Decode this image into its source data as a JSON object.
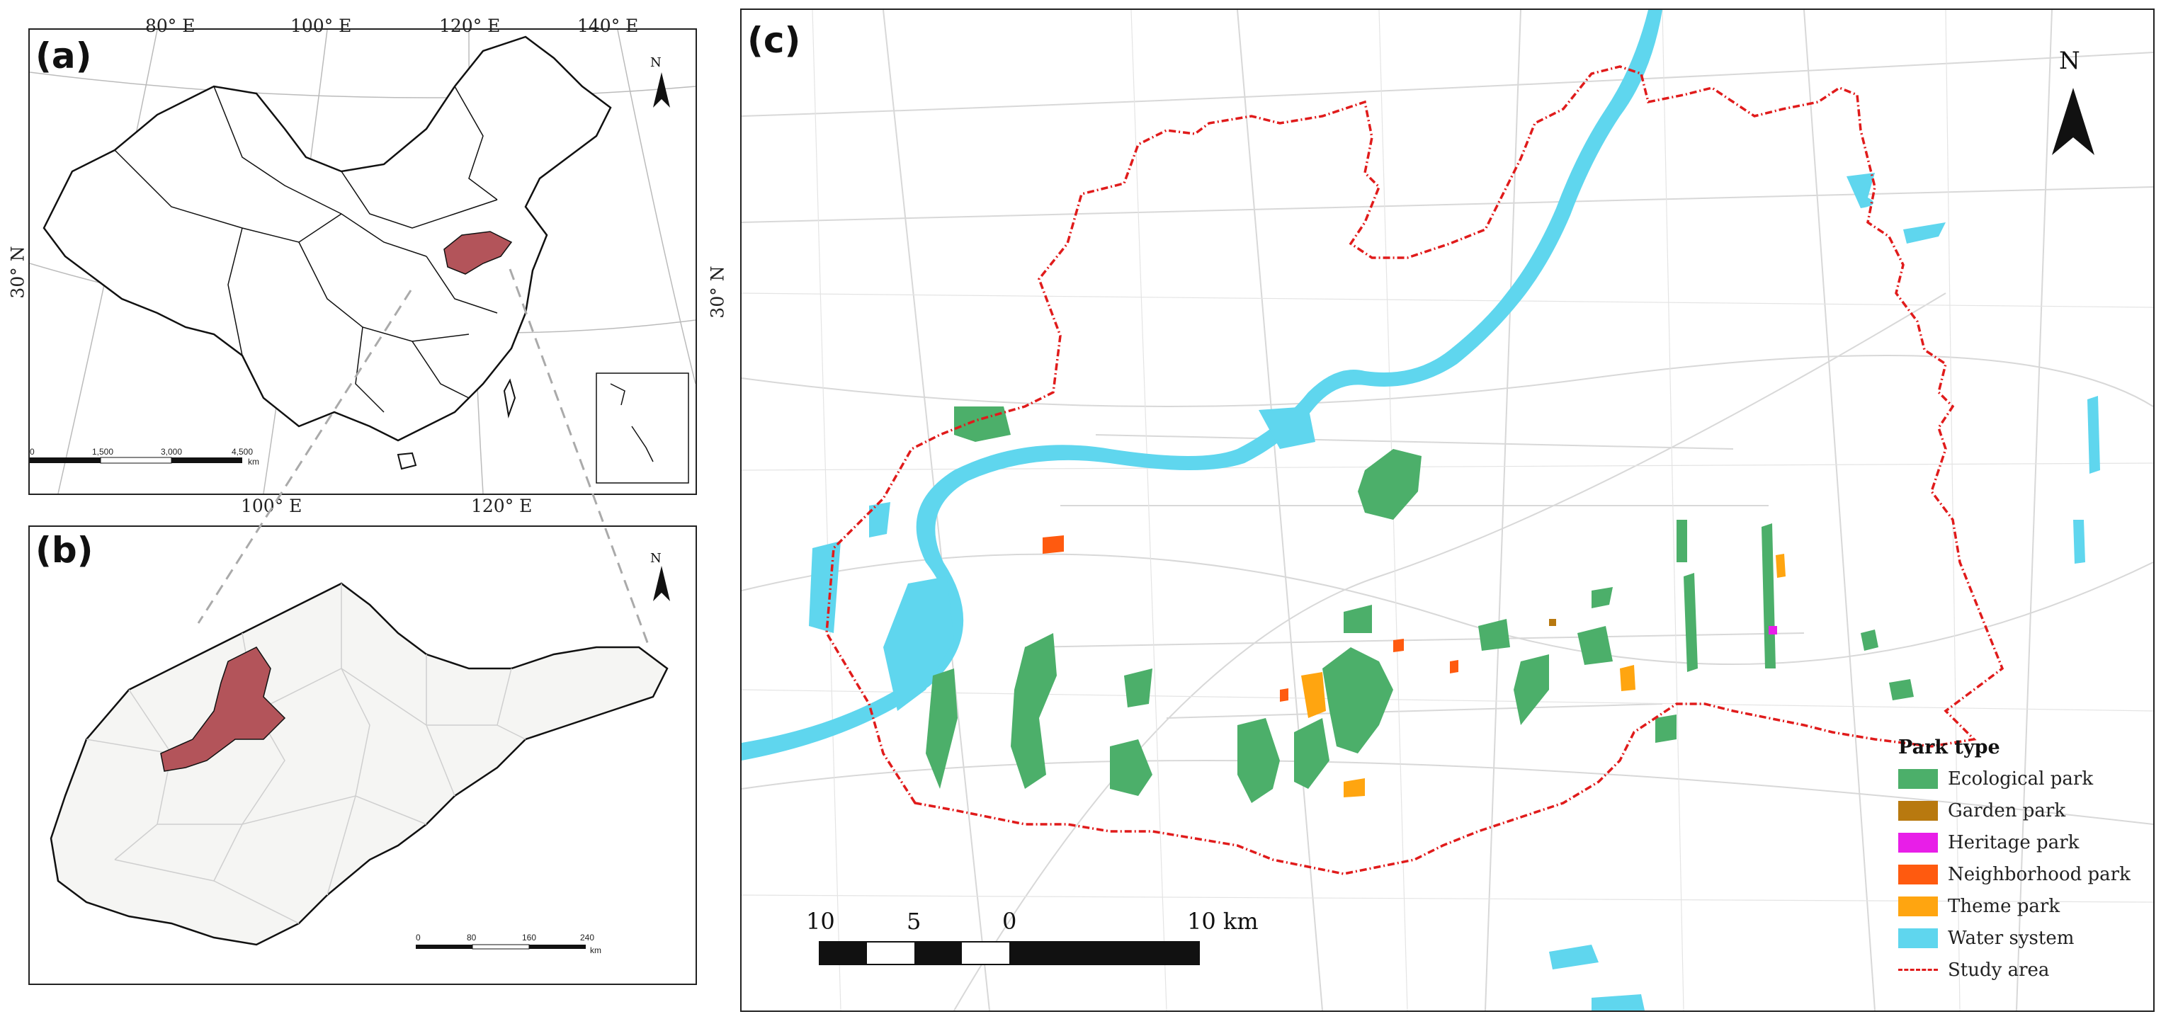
{
  "panels": {
    "a": {
      "label": "(a)",
      "lon_labels_top": [
        "80° E",
        "100° E",
        "120° E",
        "140° E"
      ],
      "lon_labels_bottom": [
        "100° E",
        "120° E"
      ],
      "lat_label_left": "30° N",
      "lat_label_right": "30° N",
      "north": "N",
      "scale_ticks": [
        "0",
        "1,500",
        "3,000",
        "4,500"
      ],
      "scale_unit": "km"
    },
    "b": {
      "label": "(b)",
      "north": "N",
      "scale_ticks": [
        "0",
        "80",
        "160",
        "240"
      ],
      "scale_unit": "km"
    },
    "c": {
      "label": "(c)",
      "north": "N",
      "scale_ticks": [
        "10",
        "5",
        "0",
        "10 km"
      ]
    }
  },
  "legend": {
    "title": "Park type",
    "items": [
      {
        "label": "Ecological park",
        "color": "#4caf6a"
      },
      {
        "label": "Garden park",
        "color": "#b8790f"
      },
      {
        "label": "Heritage park",
        "color": "#e81ee8"
      },
      {
        "label": "Neighborhood park",
        "color": "#ff5a0f"
      },
      {
        "label": "Theme park",
        "color": "#ffa510"
      },
      {
        "label": "Water system",
        "color": "#5fd6ee"
      }
    ],
    "study_area": {
      "label": "Study area",
      "color": "#e01b1b"
    }
  },
  "colors": {
    "highlight_region": "#b3545a",
    "province_fill": "#f5f5f3",
    "road": "#d6d6d6"
  }
}
